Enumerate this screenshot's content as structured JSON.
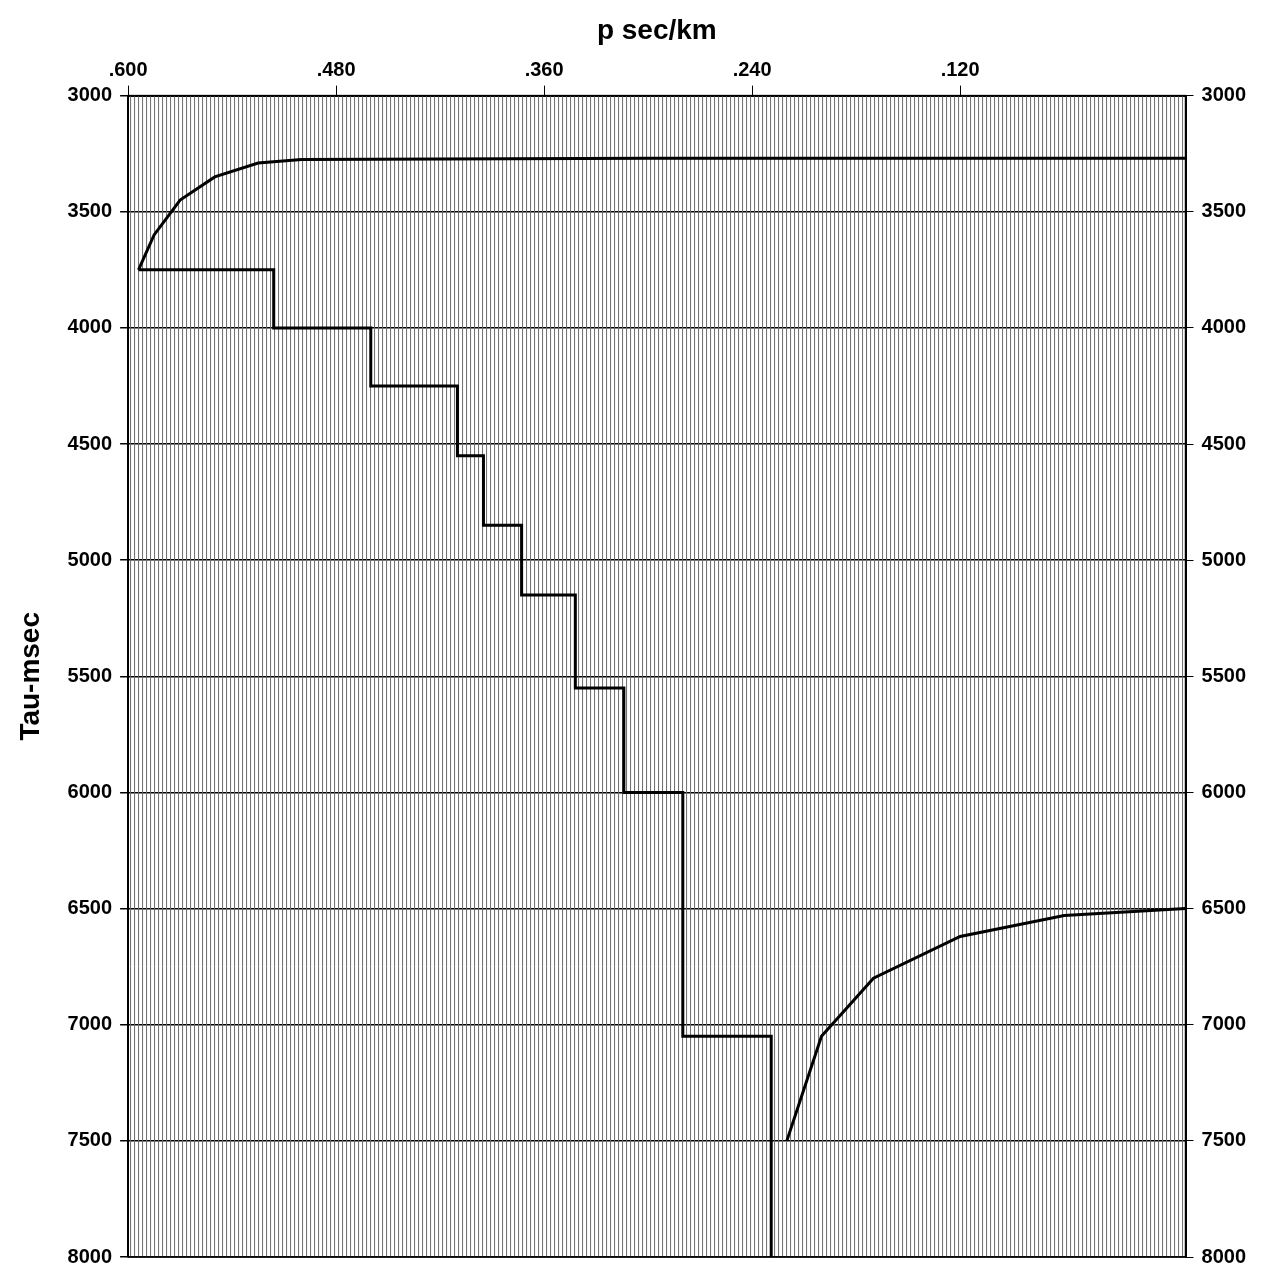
{
  "chart_data": {
    "type": "line",
    "x_label": "p sec/km",
    "y_label": "Tau-msec",
    "xlim": [
      0.6,
      -0.01
    ],
    "xticks": [
      {
        "value": 0.6,
        "label": ".600"
      },
      {
        "value": 0.48,
        "label": ".480"
      },
      {
        "value": 0.36,
        "label": ".360"
      },
      {
        "value": 0.24,
        "label": ".240"
      },
      {
        "value": 0.12,
        "label": ".120"
      }
    ],
    "ylim": [
      3000,
      8000
    ],
    "yticks": [
      3000,
      3500,
      4000,
      4500,
      5000,
      5500,
      6000,
      6500,
      7000,
      7500,
      8000
    ],
    "y2lim": [
      3000,
      8000
    ],
    "y2ticks": [
      3000,
      3500,
      4000,
      4500,
      5000,
      5500,
      6000,
      6500,
      7000,
      7500,
      8000
    ],
    "grid": true,
    "tick_labels": true,
    "series": [
      {
        "color": "#000000",
        "line_style": "solid",
        "x": [
          0.594,
          0.516,
          0.516,
          0.46,
          0.46,
          0.41,
          0.41,
          0.395,
          0.395,
          0.373,
          0.373,
          0.342,
          0.342,
          0.314,
          0.314,
          0.28,
          0.28,
          0.229,
          0.229
        ],
        "values": [
          3750,
          3750,
          4000,
          4000,
          4250,
          4250,
          4550,
          4550,
          4850,
          4850,
          5150,
          5150,
          5550,
          5550,
          6000,
          6000,
          7050,
          7050,
          8000
        ]
      },
      {
        "color": "#000000",
        "line_style": "solid",
        "x": [
          0.594,
          0.585,
          0.57,
          0.55,
          0.525,
          0.5,
          0.3,
          -0.01
        ],
        "values": [
          3750,
          3600,
          3450,
          3350,
          3290,
          3275,
          3270,
          3270
        ]
      },
      {
        "color": "#000000",
        "line_style": "solid",
        "x": [
          0.22,
          0.2,
          0.17,
          0.12,
          0.06,
          -0.01
        ],
        "values": [
          7500,
          7050,
          6800,
          6620,
          6530,
          6500
        ]
      }
    ]
  }
}
